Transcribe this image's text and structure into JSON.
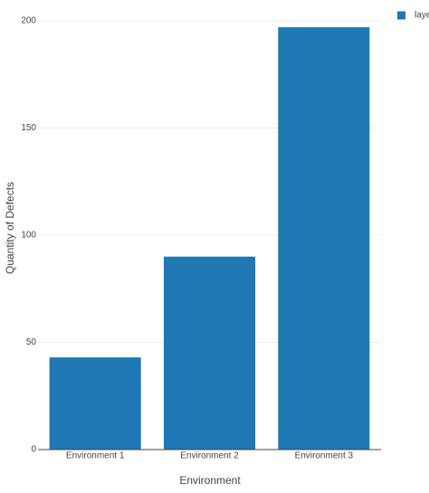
{
  "chart_data": {
    "type": "bar",
    "x_label": "Environment",
    "y_label": "Quantity of Defects",
    "categories": [
      "Environment 1",
      "Environment 2",
      "Environment 3"
    ],
    "series": [
      {
        "name": "laye",
        "color": "#1f77b4",
        "values": [
          43,
          90,
          197
        ]
      }
    ],
    "ylim": [
      0,
      200
    ],
    "yticks": [
      0,
      50,
      100,
      150,
      200
    ],
    "grid": true,
    "legend": "top-right"
  }
}
